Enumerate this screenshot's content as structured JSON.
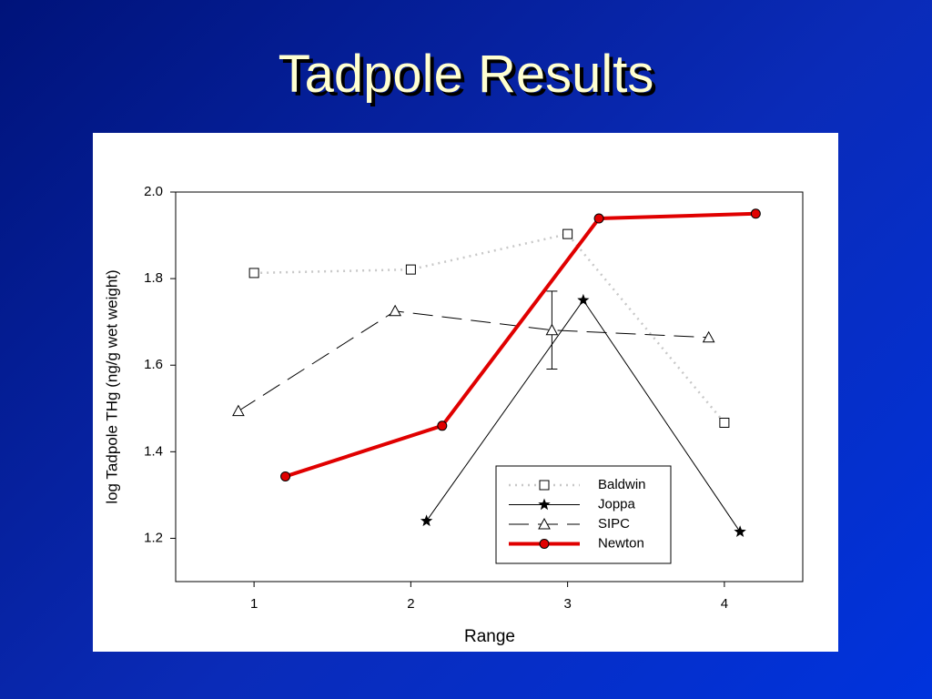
{
  "chart_data": {
    "type": "line",
    "title": "Tadpole Results",
    "xlabel": "Range",
    "ylabel": "log Tadpole THg (ng/g wet weight)",
    "xlim": [
      0.5,
      4.5
    ],
    "xticks": [
      1,
      2,
      3,
      4
    ],
    "ylim": [
      1.1,
      2.0
    ],
    "yticks": [
      {
        "value": 1.2,
        "label": "1.2"
      },
      {
        "value": 1.4,
        "label": "1.4"
      },
      {
        "value": 1.6,
        "label": "1.6"
      },
      {
        "value": 1.8,
        "label": "1.8"
      },
      {
        "value": 2,
        "label": "2.0"
      }
    ],
    "series": [
      {
        "name": "Baldwin",
        "color": "#c8c8c8",
        "line": "dot",
        "marker": "square",
        "x": [
          1,
          2,
          3,
          4
        ],
        "values": [
          1.813,
          1.821,
          1.903,
          1.467
        ]
      },
      {
        "name": "Joppa",
        "color": "#000000",
        "line": "solid",
        "marker": "star",
        "x": [
          2.1,
          3.1,
          4.1
        ],
        "values": [
          1.24,
          1.75,
          1.215
        ]
      },
      {
        "name": "SIPC",
        "color": "#000000",
        "line": "dash",
        "marker": "triangle",
        "x": [
          0.9,
          1.9,
          2.9,
          3.9
        ],
        "values": [
          1.494,
          1.725,
          1.681,
          1.664
        ],
        "errors": [
          null,
          null,
          0.09,
          null
        ]
      },
      {
        "name": "Newton",
        "color": "#e00000",
        "line": "thick",
        "marker": "circle",
        "x": [
          1.2,
          2.2,
          3.2,
          4.2
        ],
        "values": [
          1.343,
          1.46,
          1.939,
          1.95
        ]
      }
    ]
  }
}
